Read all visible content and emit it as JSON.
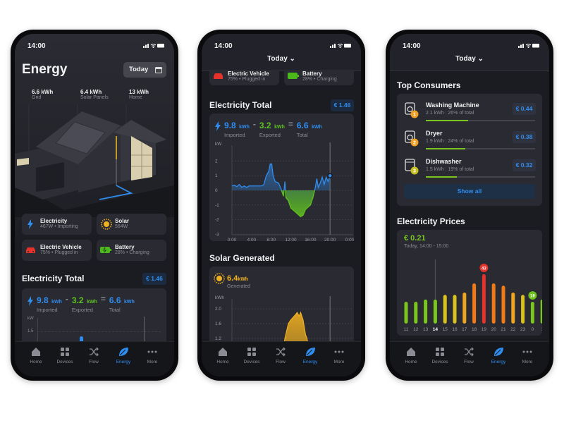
{
  "status": {
    "time": "14:00"
  },
  "colors": {
    "blue": "#2f8df0",
    "green": "#5fc11f",
    "solar": "#f0b020",
    "red": "#e5322a",
    "bg": "#1b1c21",
    "card": "#2a2b32"
  },
  "nav": [
    {
      "label": "Home",
      "icon": "home-icon"
    },
    {
      "label": "Devices",
      "icon": "grid-icon"
    },
    {
      "label": "Flow",
      "icon": "shuffle-icon"
    },
    {
      "label": "Energy",
      "icon": "leaf-icon",
      "active": true
    },
    {
      "label": "More",
      "icon": "more-icon"
    }
  ],
  "screen1": {
    "title": "Energy",
    "today_button": "Today",
    "stats": [
      {
        "value": "6.6 kWh",
        "label": "Grid"
      },
      {
        "value": "6.4 kWh",
        "label": "Solar Panels"
      },
      {
        "value": "13 kWh",
        "label": "Home"
      }
    ],
    "devices": [
      {
        "name": "Electricity",
        "detail": "467W • Importing",
        "icon": "bolt-icon"
      },
      {
        "name": "Solar",
        "detail": "564W",
        "icon": "sun-icon"
      },
      {
        "name": "Electric Vehicle",
        "detail": "75% • Plugged in",
        "icon": "car-icon"
      },
      {
        "name": "Battery",
        "detail": "28% • Charging",
        "icon": "battery-icon"
      }
    ],
    "section_title": "Electricity Total",
    "cost": "€ 1.46",
    "summary": {
      "imported": "9.8",
      "exported": "3.2",
      "total": "6.6",
      "unit": "kWh",
      "imported_label": "Imported",
      "exported_label": "Exported",
      "total_label": "Total",
      "minus": "-",
      "equals": "="
    },
    "axis_unit": "kW",
    "axis_tick": "1.5"
  },
  "screen2": {
    "today_dropdown": "Today ⌄",
    "devices": [
      {
        "name": "Electric Vehicle",
        "detail": "75% • Plugged in"
      },
      {
        "name": "Battery",
        "detail": "28% • Charging"
      }
    ],
    "section_title": "Electricity Total",
    "cost": "€ 1.46",
    "summary": {
      "imported": "9.8",
      "exported": "3.2",
      "total": "6.6",
      "unit": "kWh",
      "imported_label": "Imported",
      "exported_label": "Exported",
      "total_label": "Total",
      "minus": "-",
      "equals": "="
    },
    "solar_title": "Solar Generated",
    "solar_summary": {
      "value": "6.4",
      "unit": "kWh",
      "label": "Generated"
    }
  },
  "chart_data": [
    {
      "type": "area",
      "ylabel": "kW",
      "ylim": [
        -3,
        2
      ],
      "yticks": [
        "2",
        "1",
        "0",
        "-1",
        "-2",
        "-3"
      ],
      "xticks": [
        "0:00",
        "4:00",
        "8:00",
        "12:00",
        "16:00",
        "20:00",
        "0:00"
      ],
      "xlim": [
        0,
        24
      ],
      "current_hour": 20,
      "x": [
        0,
        0.5,
        1,
        1.5,
        2,
        2.5,
        3,
        3.5,
        4,
        5,
        6,
        6.5,
        7,
        7.5,
        7.8,
        8.1,
        8.4,
        8.8,
        9.5,
        10,
        10.5,
        10.8,
        11,
        11.5,
        12,
        13,
        14,
        14.5,
        15,
        16,
        16.5,
        17,
        17.3,
        17.6,
        18,
        18.4,
        18.8,
        19.2,
        19.6,
        20
      ],
      "y": [
        0.3,
        0.35,
        0.25,
        0.4,
        0.2,
        0.3,
        0.2,
        0.3,
        0.3,
        0.3,
        0.3,
        0.4,
        1.0,
        1.3,
        1.8,
        1.8,
        1.0,
        0.6,
        0.5,
        0.1,
        -0.4,
        0.6,
        -0.5,
        -0.7,
        -1.2,
        -1.5,
        -1.8,
        -1.7,
        -1.3,
        -1.0,
        -0.5,
        0.2,
        0.8,
        0.2,
        0.5,
        0.9,
        0.4,
        0.9,
        0.6,
        1.0
      ]
    },
    {
      "type": "area",
      "ylabel": "kWh",
      "yticks": [
        "2.0",
        "1.6",
        "1.2"
      ],
      "ylim": [
        0,
        2.2
      ],
      "xlim": [
        0,
        24
      ],
      "current_hour": 20,
      "x": [
        9,
        10,
        10.8,
        11.5,
        12,
        13,
        13.3,
        13.7,
        14,
        14.5,
        15,
        15.3,
        16,
        17
      ],
      "y": [
        0.2,
        0.6,
        1.2,
        1.6,
        1.7,
        1.85,
        1.9,
        1.8,
        1.9,
        1.7,
        1.3,
        1.2,
        0.6,
        0.1
      ]
    },
    {
      "type": "bar",
      "title": "Electricity Prices",
      "categories": [
        "11",
        "12",
        "13",
        "14",
        "15",
        "16",
        "17",
        "18",
        "19",
        "20",
        "21",
        "22",
        "23",
        "0",
        "1"
      ],
      "values": [
        19,
        19,
        21,
        21,
        25,
        25,
        27,
        35,
        43,
        35,
        33,
        27,
        25,
        19,
        21
      ],
      "selected": "14",
      "max_label": "43",
      "min_label": "19"
    }
  ],
  "screen3": {
    "today_dropdown": "Today ⌄",
    "consumers_title": "Top Consumers",
    "consumers": [
      {
        "rank": "1",
        "name": "Washing Machine",
        "kwh": "2.1 kWh",
        "share": "26% of total",
        "share_pct": 26,
        "cost": "€ 0.44",
        "icon": "washing-machine-icon",
        "rank_color": "#f0a020"
      },
      {
        "rank": "2",
        "name": "Dryer",
        "kwh": "1.9 kWh",
        "share": "24% of total",
        "share_pct": 24,
        "cost": "€ 0.38",
        "icon": "dryer-icon",
        "rank_color": "#f0a020"
      },
      {
        "rank": "3",
        "name": "Dishwasher",
        "kwh": "1.5 kWh",
        "share": "19% of total",
        "share_pct": 19,
        "cost": "€ 0.32",
        "icon": "dishwasher-icon",
        "rank_color": "#c8c020"
      }
    ],
    "show_all": "Show all",
    "prices_title": "Electricity Prices",
    "current_price": "€ 0.21",
    "current_period": "Today, 14:00 - 15:00"
  }
}
